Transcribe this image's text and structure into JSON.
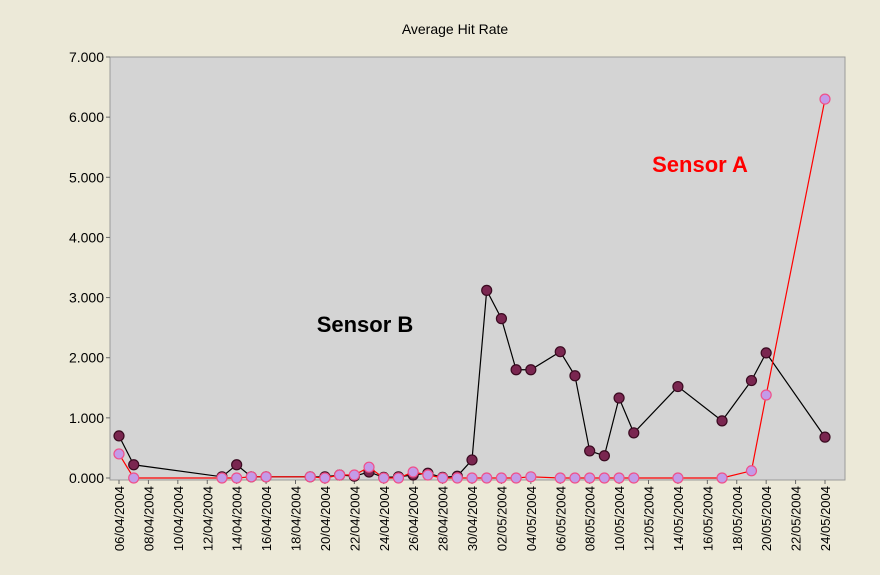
{
  "chart_data": {
    "type": "line",
    "title": "Average Hit Rate",
    "x": [
      "06/04/2004",
      "07/04/2004",
      "13/04/2004",
      "14/04/2004",
      "15/04/2004",
      "16/04/2004",
      "19/04/2004",
      "20/04/2004",
      "21/04/2004",
      "22/04/2004",
      "23/04/2004",
      "24/04/2004",
      "25/04/2004",
      "26/04/2004",
      "27/04/2004",
      "28/04/2004",
      "29/04/2004",
      "30/04/2004",
      "01/05/2004",
      "02/05/2004",
      "03/05/2004",
      "04/05/2004",
      "06/05/2004",
      "07/05/2004",
      "08/05/2004",
      "09/05/2004",
      "10/05/2004",
      "11/05/2004",
      "14/05/2004",
      "17/05/2004",
      "19/05/2004",
      "20/05/2004",
      "24/05/2004"
    ],
    "series": [
      {
        "name": "Sensor B",
        "color": "#000000",
        "marker_color": "#7a2650",
        "marker_edge": "#3a0a20",
        "values": [
          0.7,
          0.22,
          0.02,
          0.22,
          0.02,
          0.02,
          0.02,
          0.02,
          0.05,
          0.03,
          0.1,
          0.01,
          0.02,
          0.05,
          0.08,
          0.01,
          0.03,
          0.3,
          3.12,
          2.65,
          1.8,
          1.8,
          2.1,
          1.7,
          0.45,
          0.37,
          1.33,
          0.75,
          1.52,
          0.95,
          1.62,
          2.08,
          0.68
        ]
      },
      {
        "name": "Sensor A",
        "color": "#ff0000",
        "marker_color": "#c39be8",
        "marker_edge": "#f0508a",
        "values": [
          0.4,
          0,
          0,
          0,
          0.02,
          0.02,
          0.02,
          0,
          0.05,
          0.05,
          0.18,
          0,
          0,
          0.1,
          0.05,
          0,
          0,
          0,
          0,
          0,
          0,
          0.02,
          0,
          0,
          0,
          0,
          0,
          0,
          0,
          0,
          0.12,
          1.38,
          6.3
        ]
      }
    ],
    "xlim": [
      "06/04/2004",
      "24/05/2004"
    ],
    "xticks": [
      "06/04/2004",
      "08/04/2004",
      "10/04/2004",
      "12/04/2004",
      "14/04/2004",
      "16/04/2004",
      "18/04/2004",
      "20/04/2004",
      "22/04/2004",
      "24/04/2004",
      "26/04/2004",
      "28/04/2004",
      "30/04/2004",
      "02/05/2004",
      "04/05/2004",
      "06/05/2004",
      "08/05/2004",
      "10/05/2004",
      "12/05/2004",
      "14/05/2004",
      "16/05/2004",
      "18/05/2004",
      "20/05/2004",
      "22/05/2004",
      "24/05/2004"
    ],
    "ylim": [
      0,
      7
    ],
    "yticks": [
      {
        "value": 0,
        "label": "0.000"
      },
      {
        "value": 1,
        "label": "1.000"
      },
      {
        "value": 2,
        "label": "2.000"
      },
      {
        "value": 3,
        "label": "3.000"
      },
      {
        "value": 4,
        "label": "4.000"
      },
      {
        "value": 5,
        "label": "5.000"
      },
      {
        "value": 6,
        "label": "6.000"
      },
      {
        "value": 7,
        "label": "7.000"
      }
    ],
    "grid": false
  }
}
